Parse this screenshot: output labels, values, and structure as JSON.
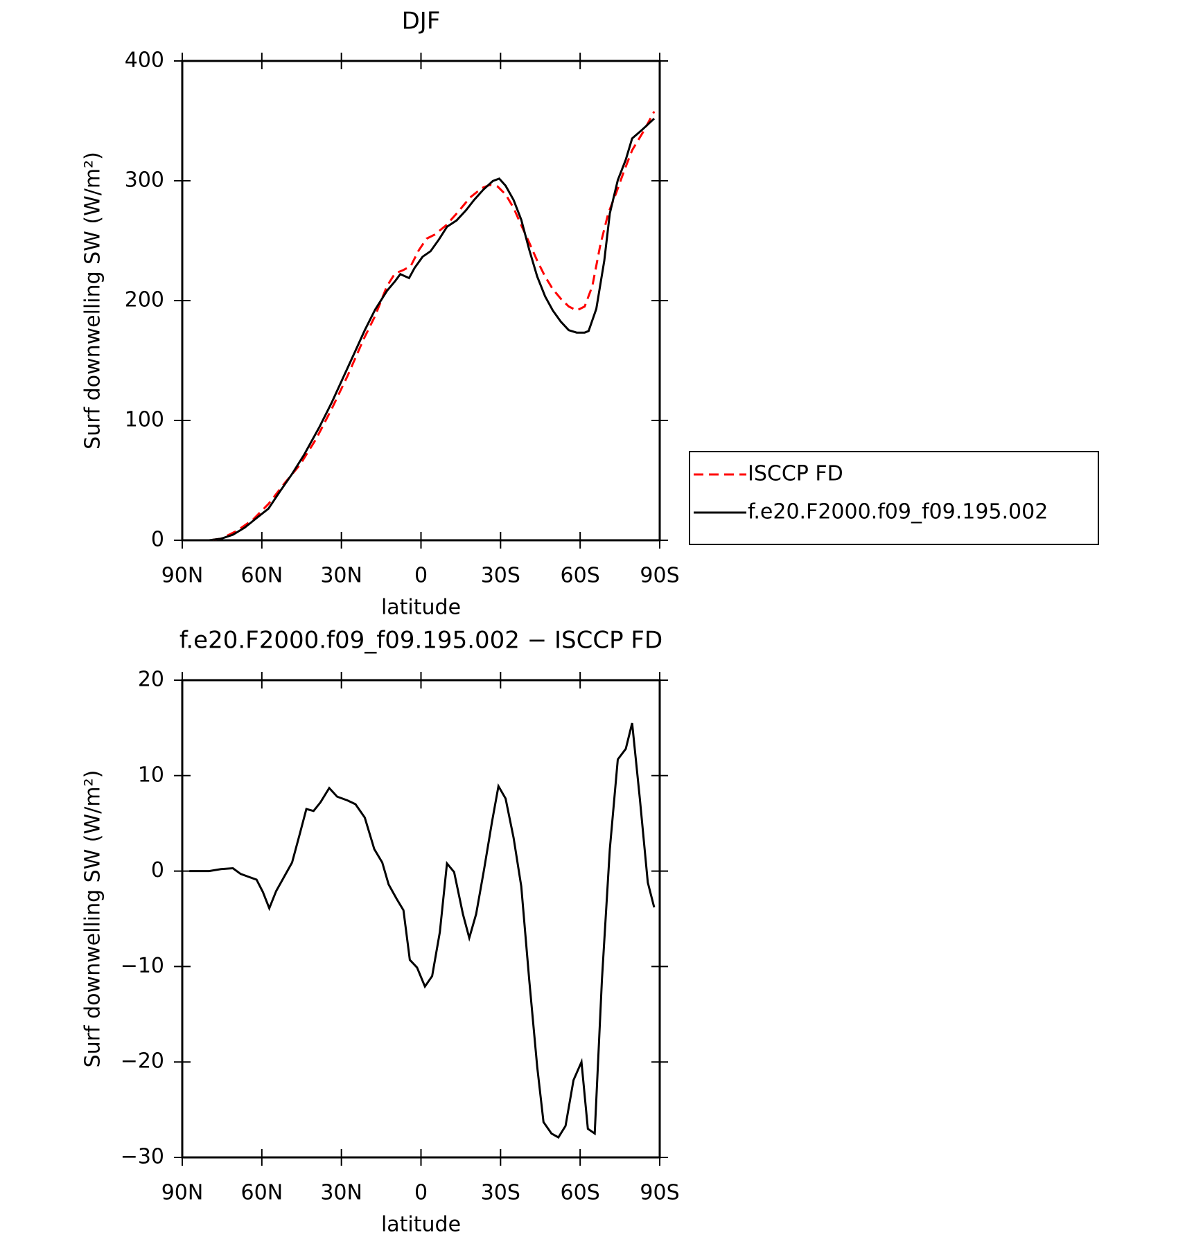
{
  "chart_data": [
    {
      "type": "line",
      "title": "DJF",
      "xlabel": "latitude",
      "ylabel": "Surf downwelling SW (W/m²)",
      "xlim": [
        90,
        -90
      ],
      "xticks": [
        {
          "value": 90,
          "label": "90N"
        },
        {
          "value": 60,
          "label": "60N"
        },
        {
          "value": 30,
          "label": "30N"
        },
        0,
        {
          "value": -30,
          "label": "30S"
        },
        {
          "value": -60,
          "label": "60S"
        },
        {
          "value": -90,
          "label": "90S"
        }
      ],
      "ylim": [
        0,
        400
      ],
      "yticks": [
        0,
        100,
        200,
        300,
        400
      ],
      "legend": "right",
      "series": [
        {
          "name": "ISCCP FD",
          "color": "#ff0000",
          "line_style": "dashed",
          "x": [
            90,
            79.9,
            75.4,
            69.4,
            63.4,
            57.5,
            51.5,
            45.5,
            39.6,
            33.7,
            27.7,
            21.7,
            17.3,
            12.8,
            9.8,
            6.8,
            3.9,
            0.9,
            -2.1,
            -5.1,
            -9.5,
            -14.0,
            -18.5,
            -22.9,
            -25.9,
            -28.9,
            -31.9,
            -34.9,
            -37.8,
            -40.8,
            -43.8,
            -46.8,
            -49.7,
            -52.7,
            -55.7,
            -58.7,
            -61.7,
            -64.6,
            -67.6,
            -70.6,
            -73.6,
            -76.6,
            -79.6,
            -84.1,
            -87.9
          ],
          "values": [
            0,
            0,
            1.3,
            7.9,
            17.1,
            30.3,
            47.4,
            63.3,
            84.3,
            109.4,
            137.1,
            167.4,
            187.2,
            212.2,
            222.7,
            225.4,
            228.7,
            241.8,
            251.7,
            255.0,
            262.9,
            274.1,
            286.0,
            293.9,
            296.5,
            295.2,
            288.6,
            277.4,
            262.9,
            248.4,
            233.3,
            220.1,
            209.6,
            201.6,
            195.1,
            191.8,
            195.1,
            212.2,
            246.5,
            272.8,
            289.9,
            308.4,
            325.5,
            342.0,
            357.8
          ]
        },
        {
          "name": "f.e20.F2000.f09_f09.195.002",
          "color": "#000000",
          "line_style": "solid",
          "x": [
            90,
            79.9,
            75.4,
            70.9,
            66.5,
            62.0,
            57.5,
            53.1,
            48.6,
            44.1,
            38.2,
            33.7,
            29.2,
            24.7,
            21.2,
            17.3,
            12.8,
            9.8,
            7.8,
            4.5,
            2.4,
            -0.6,
            -3.6,
            -6.8,
            -9.8,
            -13.4,
            -17.0,
            -20.0,
            -23.5,
            -27.1,
            -29.5,
            -31.9,
            -34.9,
            -37.8,
            -40.8,
            -43.8,
            -46.8,
            -49.7,
            -52.7,
            -55.7,
            -58.7,
            -61.7,
            -63.2,
            -66.1,
            -69.1,
            -71.2,
            -74.2,
            -77.2,
            -79.6,
            -83.1,
            -87.9
          ],
          "values": [
            0,
            0,
            1.3,
            4.6,
            10.5,
            18.5,
            26.4,
            40.9,
            55.4,
            71.2,
            94.9,
            114.7,
            136.4,
            158.2,
            175.3,
            192.4,
            208.2,
            216.1,
            222.1,
            218.8,
            227.3,
            236.6,
            241.2,
            251.1,
            261.6,
            266.9,
            275.5,
            284.0,
            292.6,
            299.8,
            301.8,
            295.9,
            284.0,
            267.5,
            242.5,
            220.1,
            203.6,
            191.8,
            182.5,
            175.3,
            173.3,
            173.3,
            174.6,
            193.1,
            233.3,
            272.8,
            300.5,
            317.6,
            335.4,
            342.0,
            351.9
          ]
        }
      ]
    },
    {
      "type": "line",
      "title": "f.e20.F2000.f09_f09.195.002 − ISCCP FD",
      "xlabel": "latitude",
      "ylabel": "Surf downwelling SW (W/m²)",
      "xlim": [
        90,
        -90
      ],
      "xticks": [
        {
          "value": 90,
          "label": "90N"
        },
        {
          "value": 60,
          "label": "60N"
        },
        {
          "value": 30,
          "label": "30N"
        },
        0,
        {
          "value": -30,
          "label": "30S"
        },
        {
          "value": -60,
          "label": "60S"
        },
        {
          "value": -90,
          "label": "90S"
        }
      ],
      "ylim": [
        -30,
        20
      ],
      "yticks": [
        {
          "value": -30,
          "label": "−30"
        },
        {
          "value": -20,
          "label": "−20"
        },
        {
          "value": -10,
          "label": "−10"
        },
        0,
        10,
        20
      ],
      "series": [
        {
          "color": "#000000",
          "line_style": "solid",
          "x": [
            87.3,
            79.9,
            75.4,
            70.9,
            68.0,
            65.0,
            62.0,
            59.6,
            57.2,
            54.6,
            51.6,
            48.6,
            45.6,
            43.2,
            40.5,
            37.9,
            34.6,
            31.6,
            27.7,
            24.7,
            21.2,
            17.6,
            14.6,
            12.2,
            9.2,
            6.6,
            4.2,
            1.5,
            -1.5,
            -4.2,
            -7.1,
            -9.8,
            -12.5,
            -15.8,
            -18.2,
            -20.8,
            -23.8,
            -26.8,
            -29.2,
            -31.9,
            -34.9,
            -37.8,
            -40.8,
            -43.8,
            -46.2,
            -49.2,
            -51.8,
            -54.5,
            -57.5,
            -60.5,
            -62.9,
            -65.5,
            -68.2,
            -71.2,
            -74.2,
            -77.2,
            -79.6,
            -82.5,
            -85.5,
            -87.9
          ],
          "values": [
            0,
            0,
            0.2,
            0.3,
            -0.3,
            -0.6,
            -0.9,
            -2.2,
            -3.9,
            -2.1,
            -0.6,
            0.9,
            4.0,
            6.5,
            6.3,
            7.2,
            8.7,
            7.8,
            7.4,
            7.0,
            5.6,
            2.3,
            0.9,
            -1.4,
            -2.9,
            -4.1,
            -9.3,
            -10.1,
            -12.1,
            -11.0,
            -6.4,
            0.8,
            -0.1,
            -4.5,
            -7.0,
            -4.5,
            0.2,
            5.2,
            8.9,
            7.6,
            3.5,
            -1.6,
            -11.4,
            -20.5,
            -26.3,
            -27.5,
            -27.9,
            -26.7,
            -21.9,
            -20.0,
            -27.0,
            -27.5,
            -11.4,
            2.3,
            11.7,
            12.8,
            15.5,
            7.6,
            -1.2,
            -3.8
          ]
        }
      ]
    }
  ]
}
